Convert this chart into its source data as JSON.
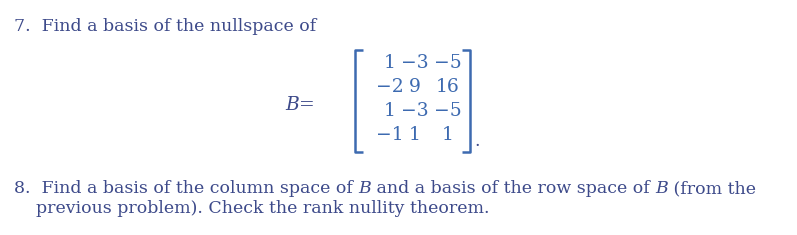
{
  "background_color": "#ffffff",
  "text_color": "#3d4a8a",
  "matrix_color": "#3d6ab0",
  "problem7_text": "7.  Find a basis of the nullspace of",
  "matrix_label": "B =",
  "matrix_rows": [
    [
      "1",
      "−3",
      "−5"
    ],
    [
      "−2",
      "9",
      "16"
    ],
    [
      "1",
      "−3",
      "−5"
    ],
    [
      "−1",
      "1",
      "1"
    ]
  ],
  "period": ".",
  "problem8_parts": [
    {
      "text": "8.  Find a basis of the column space of ",
      "italic": false
    },
    {
      "text": "B",
      "italic": true
    },
    {
      "text": " and a basis of the row space of ",
      "italic": false
    },
    {
      "text": "B",
      "italic": true
    },
    {
      "text": " (from the",
      "italic": false
    }
  ],
  "problem8_line2": "    previous problem). Check the rank nullity theorem.",
  "fontsize_main": 12.5,
  "fontsize_matrix": 13.5
}
